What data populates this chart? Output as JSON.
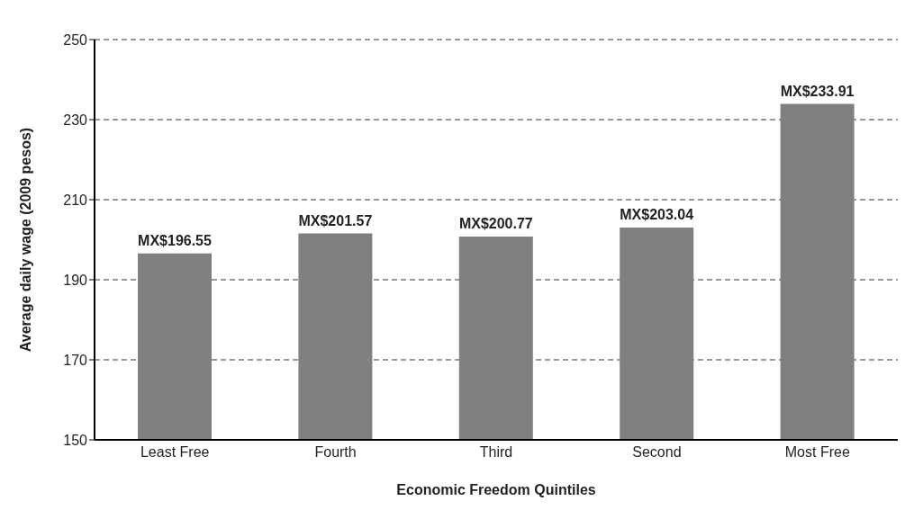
{
  "chart_data": {
    "type": "bar",
    "xlabel": "Economic Freedom Quintiles",
    "ylabel": "Average daily wage (2009 pesos)",
    "categories": [
      "Least Free",
      "Fourth",
      "Third",
      "Second",
      "Most Free"
    ],
    "values": [
      196.55,
      201.57,
      200.77,
      203.04,
      233.91
    ],
    "value_labels": [
      "MX$196.55",
      "MX$201.57",
      "MX$200.77",
      "MX$203.04",
      "MX$233.91"
    ],
    "color": "#808080",
    "ylim": [
      150,
      250
    ],
    "yticks": [
      150,
      170,
      190,
      210,
      230,
      250
    ],
    "grid": "y",
    "legend": false
  }
}
